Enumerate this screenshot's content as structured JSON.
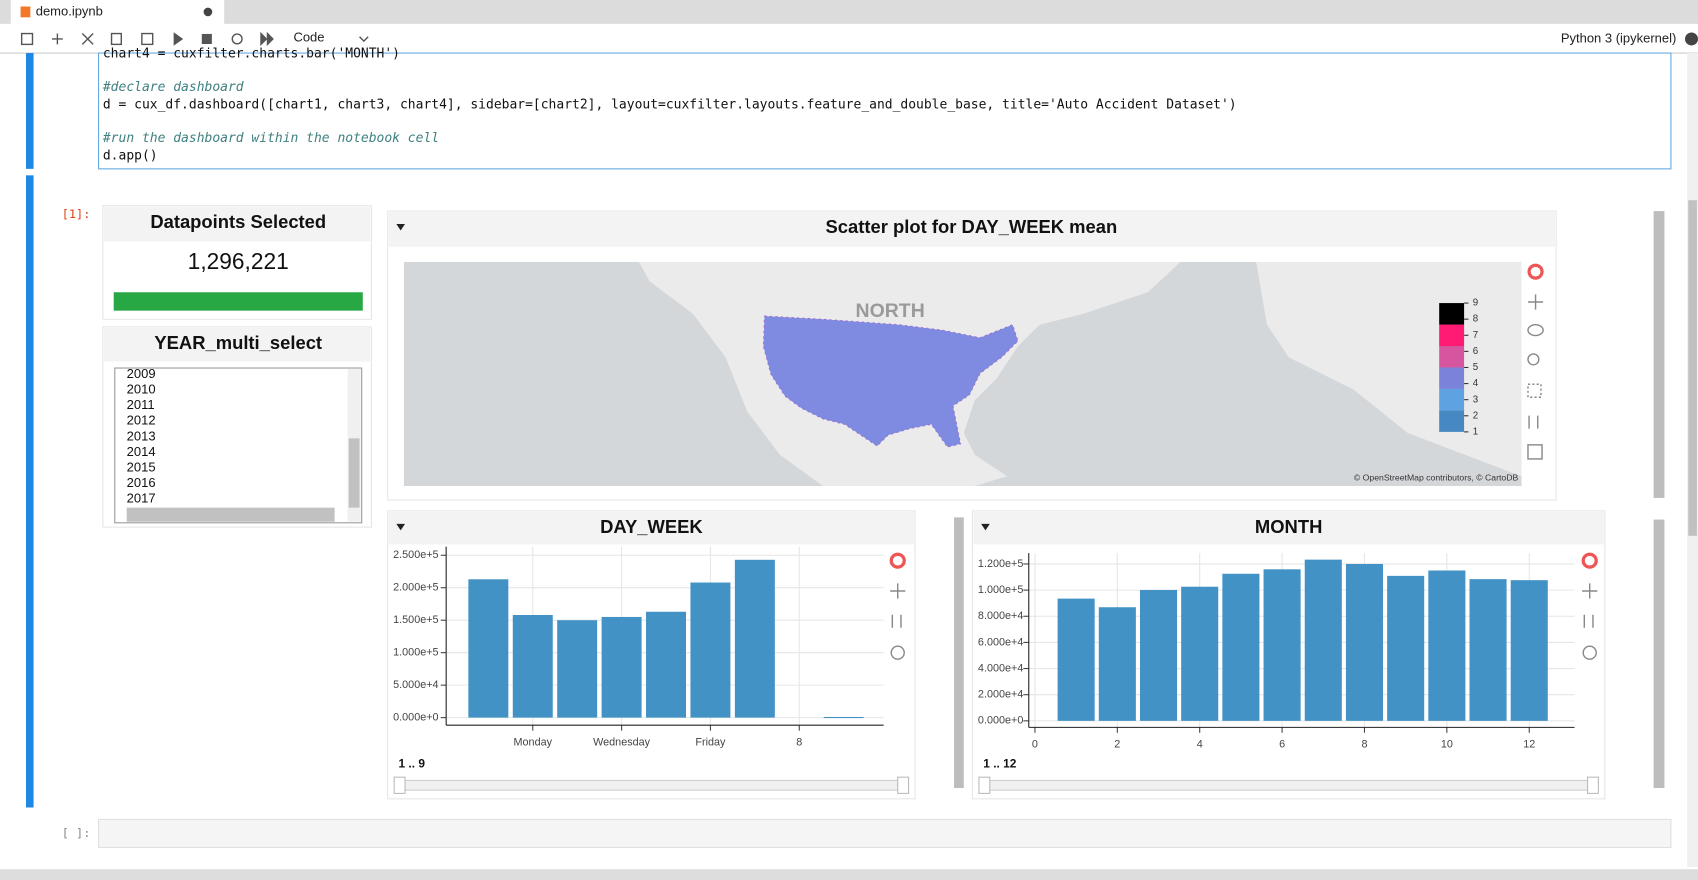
{
  "tab": {
    "title": "demo.ipynb"
  },
  "toolbar": {
    "cell_type": "Code",
    "kernel": "Python 3 (ipykernel)"
  },
  "code": {
    "lines": [
      "chart4 = cuxfilter.charts.bar('MONTH')",
      "#declare dashboard",
      "d = cux_df.dashboard([chart1, chart3, chart4], sidebar=[chart2], layout=cuxfilter.layouts.feature_and_double_base, title='Auto Accident Dataset')",
      "#run the dashboard within the notebook cell",
      "d.app()"
    ]
  },
  "output": {
    "prompt": "[1]:",
    "empty_prompt": "[ ]:"
  },
  "datapoints": {
    "title": "Datapoints Selected",
    "value": "1,296,221"
  },
  "year_select": {
    "title": "YEAR_multi_select",
    "options": [
      "2009",
      "2010",
      "2011",
      "2012",
      "2013",
      "2014",
      "2015",
      "2016",
      "2017"
    ]
  },
  "scatter": {
    "title": "Scatter plot for DAY_WEEK mean",
    "map_label": "NORTH",
    "attribution": "© OpenStreetMap contributors, © CartoDB",
    "colorbar": {
      "lim": [
        1,
        9
      ],
      "ticks": [
        1,
        2,
        3,
        4,
        5,
        6,
        7,
        8,
        9
      ],
      "colors": [
        "#4689c2",
        "#5fa2e2",
        "#7b82da",
        "#d6559f",
        "#ff1a74",
        "#000000"
      ]
    }
  },
  "chart_data": [
    {
      "type": "bar",
      "title": "DAY_WEEK",
      "x": [
        1,
        2,
        3,
        4,
        5,
        6,
        7,
        9
      ],
      "values": [
        213000,
        158000,
        150000,
        155000,
        163000,
        208000,
        243000,
        1000
      ],
      "color": "#4292c6",
      "xlim": [
        0.05,
        9.9
      ],
      "xticks": [
        {
          "value": 2,
          "label": "Monday"
        },
        {
          "value": 4,
          "label": "Wednesday"
        },
        {
          "value": 6,
          "label": "Friday"
        },
        8
      ],
      "ylim": [
        -11700,
        263300
      ],
      "yticks": [
        {
          "value": 0,
          "label": "0.000e+0"
        },
        {
          "value": 50000,
          "label": "5.000e+4"
        },
        {
          "value": 100000,
          "label": "1.000e+5"
        },
        {
          "value": 150000,
          "label": "1.500e+5"
        },
        {
          "value": 200000,
          "label": "2.000e+5"
        },
        {
          "value": 250000,
          "label": "2.500e+5"
        }
      ],
      "grid": true,
      "range_label": "1 .. 9"
    },
    {
      "type": "bar",
      "title": "MONTH",
      "x": [
        1,
        2,
        3,
        4,
        5,
        6,
        7,
        8,
        9,
        10,
        11,
        12
      ],
      "values": [
        93500,
        86900,
        100100,
        102600,
        112500,
        115900,
        123300,
        120000,
        110900,
        115000,
        108400,
        107600
      ],
      "color": "#4292c6",
      "xlim": [
        -0.15,
        13.1
      ],
      "xticks": [
        0,
        2,
        4,
        6,
        8,
        10,
        12
      ],
      "ylim": [
        -5000,
        128300
      ],
      "yticks": [
        {
          "value": 0,
          "label": "0.000e+0"
        },
        {
          "value": 20000,
          "label": "2.000e+4"
        },
        {
          "value": 40000,
          "label": "4.000e+4"
        },
        {
          "value": 60000,
          "label": "6.000e+4"
        },
        {
          "value": 80000,
          "label": "8.000e+4"
        },
        {
          "value": 100000,
          "label": "1.000e+5"
        },
        {
          "value": 120000,
          "label": "1.200e+5"
        }
      ],
      "grid": true,
      "range_label": "1 .. 12"
    }
  ]
}
